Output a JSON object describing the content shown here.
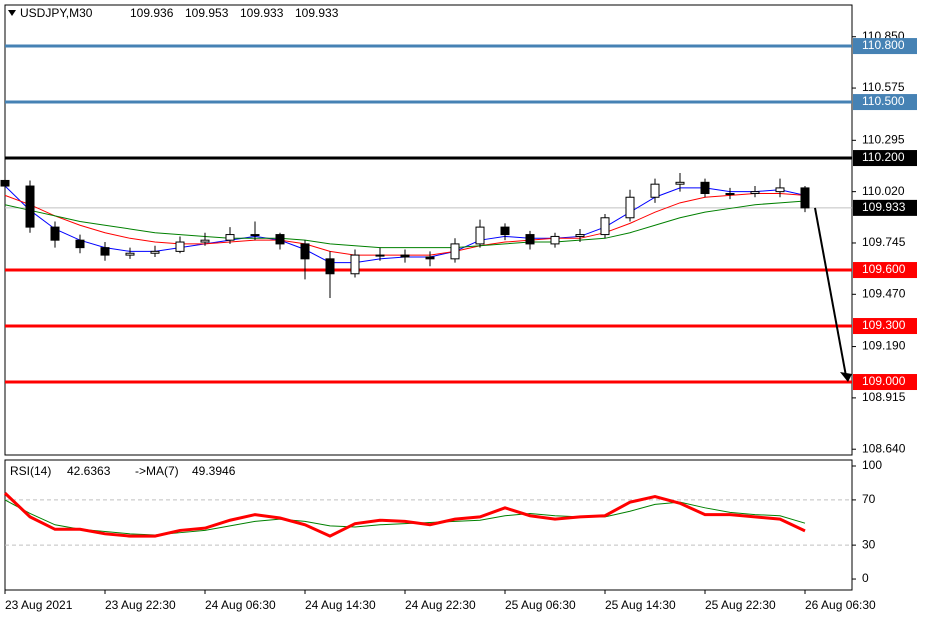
{
  "chart_data": [
    {
      "type": "candlestick",
      "title": "USDJPY,M30",
      "quote": [
        109.936,
        109.953,
        109.933,
        109.933
      ],
      "categories": [
        "23 Aug 2021",
        null,
        null,
        null,
        "23 Aug 22:30",
        null,
        null,
        null,
        "24 Aug 06:30",
        null,
        null,
        null,
        "24 Aug 14:30",
        null,
        null,
        null,
        "24 Aug 22:30",
        null,
        null,
        null,
        "25 Aug 06:30",
        null,
        null,
        null,
        "25 Aug 14:30",
        null,
        null,
        null,
        "25 Aug 22:30",
        null,
        null,
        null,
        "26 Aug 06:30"
      ],
      "open": [
        110.08,
        110.05,
        109.83,
        109.76,
        109.72,
        109.68,
        109.69,
        109.7,
        109.75,
        109.76,
        109.79,
        109.79,
        109.74,
        109.66,
        109.58,
        109.68,
        109.68,
        109.67,
        109.66,
        109.74,
        109.83,
        109.79,
        109.74,
        109.78,
        109.79,
        109.88,
        109.99,
        110.06,
        110.07,
        110.01,
        110.01,
        110.02,
        110.04
      ],
      "high": [
        110.1,
        110.08,
        109.86,
        109.79,
        109.75,
        109.72,
        109.73,
        109.78,
        109.8,
        109.83,
        109.86,
        109.8,
        109.76,
        109.7,
        109.71,
        109.72,
        109.71,
        109.7,
        109.77,
        109.87,
        109.85,
        109.81,
        109.8,
        109.82,
        109.9,
        110.03,
        110.09,
        110.12,
        110.09,
        110.04,
        110.05,
        110.09,
        110.05
      ],
      "low": [
        110.02,
        109.8,
        109.72,
        109.69,
        109.65,
        109.66,
        109.67,
        109.69,
        109.73,
        109.74,
        109.76,
        109.71,
        109.55,
        109.45,
        109.56,
        109.65,
        109.64,
        109.62,
        109.64,
        109.72,
        109.76,
        109.71,
        109.72,
        109.75,
        109.77,
        109.86,
        109.96,
        110.02,
        109.99,
        109.98,
        109.99,
        109.99,
        109.91
      ],
      "close": [
        110.05,
        109.83,
        109.76,
        109.72,
        109.68,
        109.69,
        109.7,
        109.75,
        109.76,
        109.79,
        109.79,
        109.74,
        109.66,
        109.58,
        109.68,
        109.68,
        109.67,
        109.66,
        109.74,
        109.83,
        109.79,
        109.74,
        109.78,
        109.79,
        109.88,
        109.99,
        110.06,
        110.07,
        110.01,
        110.01,
        110.02,
        110.04,
        109.933
      ],
      "series": [
        {
          "color": "#0000ff",
          "values": [
            110.05,
            109.92,
            109.82,
            109.76,
            109.72,
            109.7,
            109.7,
            109.72,
            109.74,
            109.76,
            109.78,
            109.76,
            109.71,
            109.64,
            109.64,
            109.66,
            109.67,
            109.67,
            109.7,
            109.76,
            109.78,
            109.77,
            109.77,
            109.78,
            109.83,
            109.91,
            109.99,
            110.04,
            110.04,
            110.02,
            110.02,
            110.03,
            110.0
          ]
        },
        {
          "color": "#ff0000",
          "values": [
            110.0,
            109.95,
            109.89,
            109.84,
            109.8,
            109.77,
            109.75,
            109.74,
            109.74,
            109.75,
            109.76,
            109.76,
            109.74,
            109.7,
            109.68,
            109.68,
            109.68,
            109.68,
            109.7,
            109.73,
            109.75,
            109.76,
            109.77,
            109.77,
            109.8,
            109.85,
            109.91,
            109.96,
            109.99,
            110.0,
            110.01,
            110.01,
            110.0
          ]
        },
        {
          "color": "#008000",
          "values": [
            109.95,
            109.92,
            109.89,
            109.86,
            109.84,
            109.82,
            109.8,
            109.79,
            109.78,
            109.77,
            109.77,
            109.77,
            109.76,
            109.74,
            109.73,
            109.72,
            109.72,
            109.72,
            109.72,
            109.73,
            109.74,
            109.75,
            109.75,
            109.76,
            109.77,
            109.8,
            109.84,
            109.88,
            109.91,
            109.93,
            109.95,
            109.96,
            109.97
          ]
        }
      ],
      "ylim": [
        108.609,
        111.02
      ],
      "yticks": [
        {
          "value": 110.85,
          "label": "110.850"
        },
        110.575,
        110.295,
        {
          "value": 110.02,
          "label": "110.020"
        },
        109.745,
        {
          "value": 109.47,
          "label": "109.470"
        },
        {
          "value": 109.19,
          "label": "109.190"
        },
        108.915,
        {
          "value": 108.64,
          "label": "108.640"
        }
      ],
      "levels": [
        {
          "value": 110.8,
          "label": "110.800",
          "color": "#4682b4"
        },
        {
          "value": 110.5,
          "label": "110.500",
          "color": "#4682b4"
        },
        {
          "value": 110.2,
          "label": "110.200",
          "color": "#000000"
        },
        {
          "value": 109.6,
          "label": "109.600",
          "color": "#ff0000"
        },
        {
          "value": 109.3,
          "label": "109.300",
          "color": "#ff0000"
        },
        {
          "value": 109.0,
          "label": "109.000",
          "color": "#ff0000"
        }
      ],
      "last_price": 109.933
    },
    {
      "type": "line",
      "series": [
        {
          "name": "RSI(14)",
          "color": "#ff0000",
          "values": [
            76,
            55,
            44,
            44,
            40,
            38,
            38,
            43,
            45,
            52,
            57,
            54,
            48,
            38,
            49,
            52,
            51,
            48,
            53,
            55,
            63,
            56,
            53,
            55,
            56,
            68,
            73,
            67,
            57,
            57,
            55,
            53,
            42.6363
          ]
        },
        {
          "name": "->MA(7)",
          "color": "#008000",
          "values": [
            70,
            58,
            48,
            44,
            42,
            40,
            39,
            41,
            43,
            47,
            51,
            53,
            51,
            47,
            46,
            48,
            49,
            50,
            51,
            52,
            56,
            58,
            56,
            55,
            55,
            60,
            66,
            68,
            63,
            59,
            57,
            56,
            49.3946
          ]
        }
      ],
      "ylim": [
        -9.7,
        105.3
      ],
      "yticks": [
        100,
        70,
        30,
        0
      ],
      "levels": [
        70,
        30
      ]
    }
  ]
}
